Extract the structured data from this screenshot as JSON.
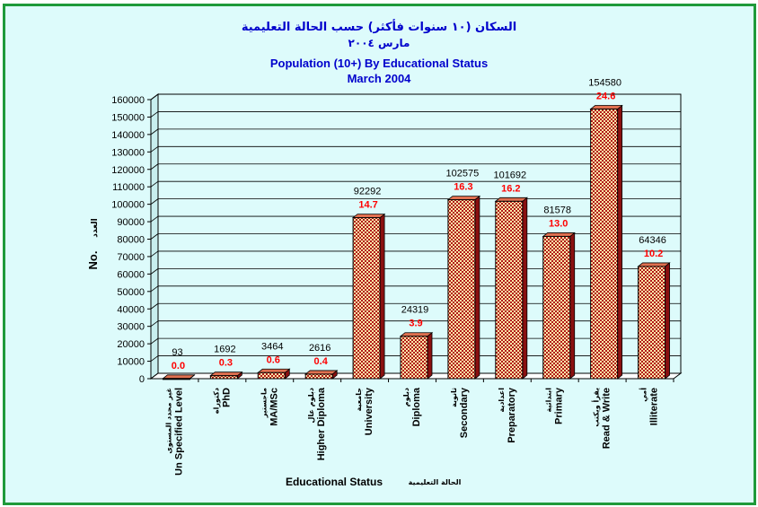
{
  "chart_data": {
    "type": "bar",
    "title_ar": "السكان (١٠ سنوات فأكثر) حسب الحالة التعليمية",
    "subtitle_ar": "مارس ٢٠٠٤",
    "title": "Population (10+) By Educational Status",
    "subtitle": "March 2004",
    "xlabel": "Educational Status",
    "xlabel_ar": "الحالة التعليمية",
    "ylabel": "No.",
    "ylabel_ar": "العدد",
    "ylim": [
      0,
      160000
    ],
    "ytick_step": 10000,
    "grid": true,
    "categories": [
      {
        "en": "Un Specified Level",
        "ar": "غير محدد المستوى"
      },
      {
        "en": "PhD",
        "ar": "دكتوراه"
      },
      {
        "en": "MA/MSc",
        "ar": "ماجستير"
      },
      {
        "en": "Higher Diploma",
        "ar": "دبلوم عال"
      },
      {
        "en": "University",
        "ar": "جامعية"
      },
      {
        "en": "Diploma",
        "ar": "دبلوم"
      },
      {
        "en": "Secondary",
        "ar": "ثانوية"
      },
      {
        "en": "Preparatory",
        "ar": "اعدادية"
      },
      {
        "en": "Primary",
        "ar": "ابتدائية"
      },
      {
        "en": "Read & Write",
        "ar": "يقرأ ويكتب"
      },
      {
        "en": "Illiterate",
        "ar": "أمي"
      }
    ],
    "values": [
      93,
      1692,
      3464,
      2616,
      92292,
      24319,
      102575,
      101692,
      81578,
      154580,
      64346
    ],
    "percentages": [
      "0.0",
      "0.3",
      "0.6",
      "0.4",
      "14.7",
      "3.9",
      "16.3",
      "16.2",
      "13.0",
      "24.6",
      "10.2"
    ],
    "colors": {
      "title": "#0000cc",
      "percent_label": "#ff0000",
      "bar_fill_a": "#ffe8a8",
      "bar_fill_b": "#b01818",
      "border": "#1f9a3a",
      "background": "#ddfbfb"
    }
  }
}
